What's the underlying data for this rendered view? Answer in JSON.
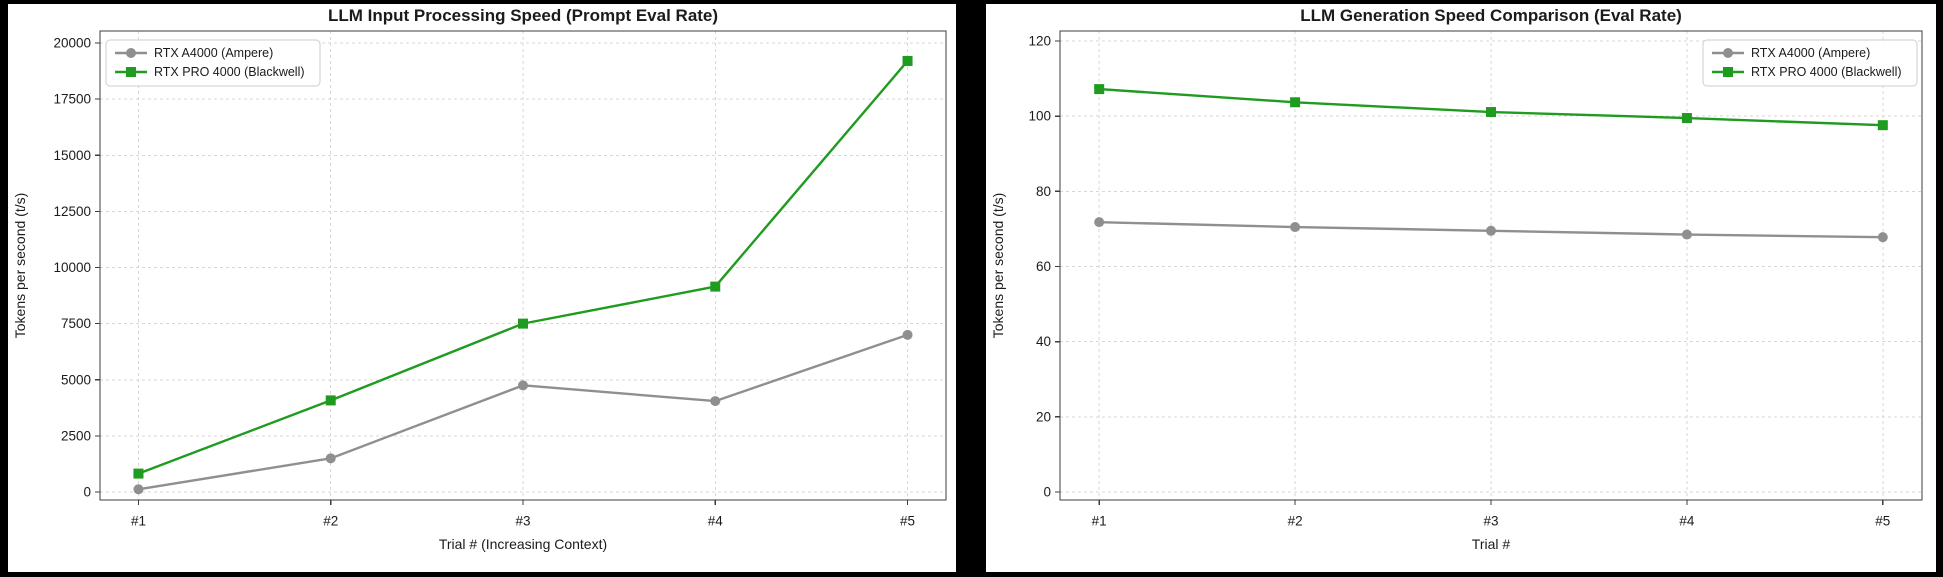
{
  "page": {
    "background": "#000000",
    "panel_background": "#ffffff"
  },
  "colors": {
    "rtx_a4000": "#8f8f8f",
    "rtx_pro_4000": "#1f9b1f",
    "grid": "#d7d7d7",
    "spine": "#3c3c3c",
    "text": "#1b1b1b",
    "legend_border": "#cccccc"
  },
  "chart_data": [
    {
      "type": "line",
      "title": "LLM Input Processing Speed (Prompt Eval Rate)",
      "xlabel": "Trial # (Increasing Context)",
      "ylabel": "Tokens per second (t/s)",
      "categories": [
        "#1",
        "#2",
        "#3",
        "#4",
        "#5"
      ],
      "yticks": [
        0,
        2500,
        5000,
        7500,
        10000,
        12500,
        15000,
        17500,
        20000
      ],
      "ylim": [
        0,
        20000
      ],
      "grid": true,
      "legend_position": "top-left",
      "series": [
        {
          "name": "RTX A4000 (Ampere)",
          "color": "#8f8f8f",
          "marker": "circle",
          "values": [
            120,
            1500,
            4750,
            4050,
            7000
          ]
        },
        {
          "name": "RTX PRO 4000 (Blackwell)",
          "color": "#1f9b1f",
          "marker": "square",
          "values": [
            820,
            4080,
            7500,
            9150,
            19200
          ]
        }
      ]
    },
    {
      "type": "line",
      "title": "LLM Generation Speed Comparison (Eval Rate)",
      "xlabel": "Trial #",
      "ylabel": "Tokens per second (t/s)",
      "categories": [
        "#1",
        "#2",
        "#3",
        "#4",
        "#5"
      ],
      "yticks": [
        0,
        20,
        40,
        60,
        80,
        100,
        120
      ],
      "ylim": [
        0,
        120
      ],
      "grid": true,
      "legend_position": "top-right",
      "series": [
        {
          "name": "RTX A4000 (Ampere)",
          "color": "#8f8f8f",
          "marker": "circle",
          "values": [
            71.8,
            70.5,
            69.5,
            68.5,
            67.8
          ]
        },
        {
          "name": "RTX PRO 4000 (Blackwell)",
          "color": "#1f9b1f",
          "marker": "square",
          "values": [
            107.2,
            103.7,
            101.1,
            99.5,
            97.6
          ]
        }
      ]
    }
  ]
}
